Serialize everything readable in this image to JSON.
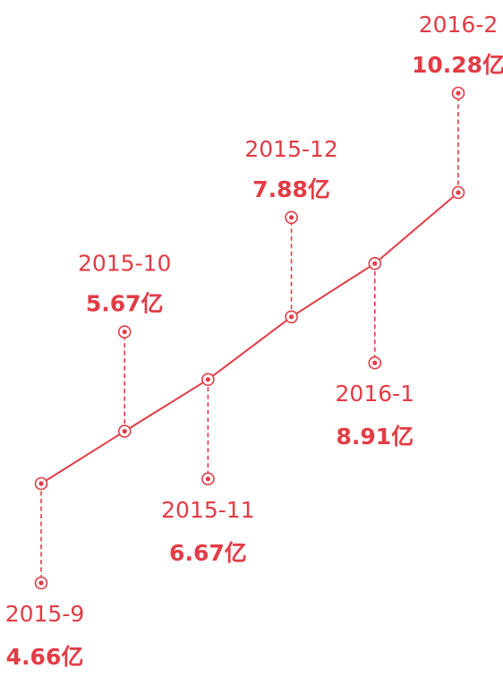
{
  "chart_data": {
    "type": "line",
    "x": [
      "2015-9",
      "2015-10",
      "2015-11",
      "2015-12",
      "2016-1",
      "2016-2"
    ],
    "values": [
      4.66,
      5.67,
      6.67,
      7.88,
      8.91,
      10.28
    ],
    "unit": "亿",
    "value_labels": [
      "4.66亿",
      "5.67亿",
      "6.67亿",
      "7.88亿",
      "8.91亿",
      "10.28亿"
    ],
    "label_side": [
      "below",
      "above",
      "below",
      "above",
      "below",
      "above"
    ],
    "colors": {
      "line": "#e23c45",
      "text": "#e23c45",
      "background": "#ffffff"
    },
    "grid": false,
    "legend": "none"
  }
}
